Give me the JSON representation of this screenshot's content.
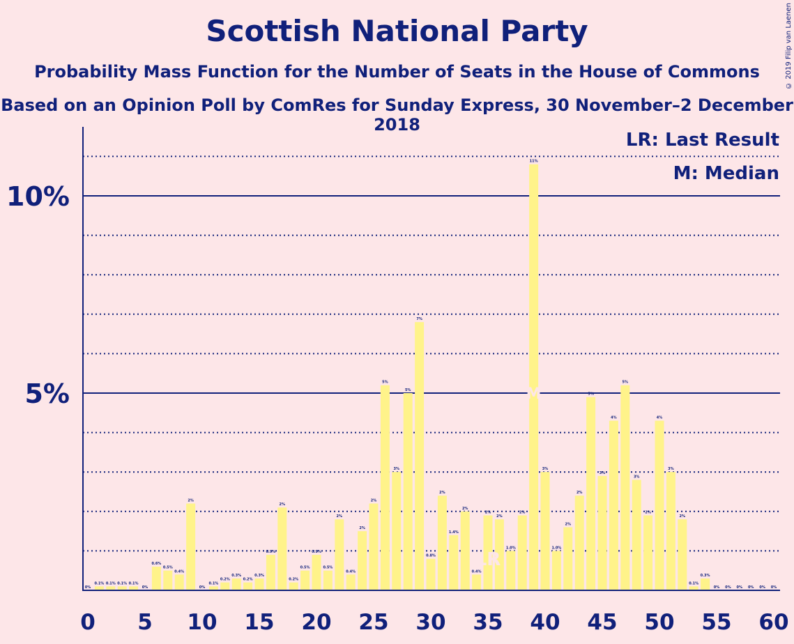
{
  "header": {
    "title": "Scottish National Party",
    "subtitle": "Probability Mass Function for the Number of Seats in the House of Commons",
    "subtitle2": "Based on an Opinion Poll by ComRes for Sunday Express, 30 November–2 December 2018",
    "copyright": "© 2019 Filip van Laenen"
  },
  "colors": {
    "background": "#fde6e8",
    "bar": "#fff38a",
    "axis": "#10207a",
    "marker": "#fde6e8"
  },
  "chart_data": {
    "type": "bar",
    "x": [
      0,
      1,
      2,
      3,
      4,
      5,
      6,
      7,
      8,
      9,
      10,
      11,
      12,
      13,
      14,
      15,
      16,
      17,
      18,
      19,
      20,
      21,
      22,
      23,
      24,
      25,
      26,
      27,
      28,
      29,
      30,
      31,
      32,
      33,
      34,
      35,
      36,
      37,
      38,
      39,
      40,
      41,
      42,
      43,
      44,
      45,
      46,
      47,
      48,
      49,
      50,
      51,
      52,
      53,
      54,
      55,
      56,
      57,
      58,
      59,
      60
    ],
    "values": [
      0,
      0.1,
      0.1,
      0.1,
      0.1,
      0,
      0.6,
      0.5,
      0.4,
      2.2,
      0,
      0.1,
      0.2,
      0.3,
      0.2,
      0.3,
      0.9,
      2.1,
      0.2,
      0.5,
      0.9,
      0.5,
      1.8,
      0.4,
      1.5,
      2.2,
      5.2,
      3.0,
      5.0,
      6.8,
      0.8,
      2.4,
      1.4,
      2.0,
      0.4,
      1.9,
      1.8,
      1.0,
      1.9,
      10.8,
      3.0,
      1.0,
      1.6,
      2.4,
      4.9,
      2.9,
      4.3,
      5.2,
      2.8,
      1.9,
      4.3,
      3.0,
      1.8,
      0.1,
      0.3,
      0,
      0,
      0,
      0,
      0,
      0
    ],
    "labels": [
      "0%",
      "0.1%",
      "0.1%",
      "0.1%",
      "0.1%",
      "0%",
      "0.6%",
      "0.5%",
      "0.4%",
      "2%",
      "0%",
      "0.1%",
      "0.2%",
      "0.3%",
      "0.2%",
      "0.3%",
      "0.9%",
      "2%",
      "0.2%",
      "0.5%",
      "0.9%",
      "0.5%",
      "2%",
      "0.4%",
      "2%",
      "2%",
      "5%",
      "3%",
      "5%",
      "7%",
      "0.8%",
      "2%",
      "1.4%",
      "2%",
      "0.4%",
      "2%",
      "2%",
      "1.0%",
      "2%",
      "11%",
      "3%",
      "1.0%",
      "2%",
      "2%",
      "5%",
      "3%",
      "4%",
      "5%",
      "3%",
      "2%",
      "4%",
      "3%",
      "2%",
      "0.1%",
      "0.3%",
      "0%",
      "0%",
      "0%",
      "0%",
      "0%",
      "0%"
    ],
    "xticks": [
      "0",
      "5",
      "10",
      "15",
      "20",
      "25",
      "30",
      "35",
      "40",
      "45",
      "50",
      "55",
      "60"
    ],
    "yticks": [
      "5%",
      "10%"
    ],
    "ylim": [
      0,
      11.7
    ],
    "xlim": [
      0,
      60
    ],
    "last_result_seat": 35,
    "median_seat": 39,
    "last_result_marker": "LR",
    "median_marker": "M",
    "legend": {
      "lr": "LR: Last Result",
      "median": "M: Median",
      "position": "top-right"
    },
    "grid": true
  }
}
